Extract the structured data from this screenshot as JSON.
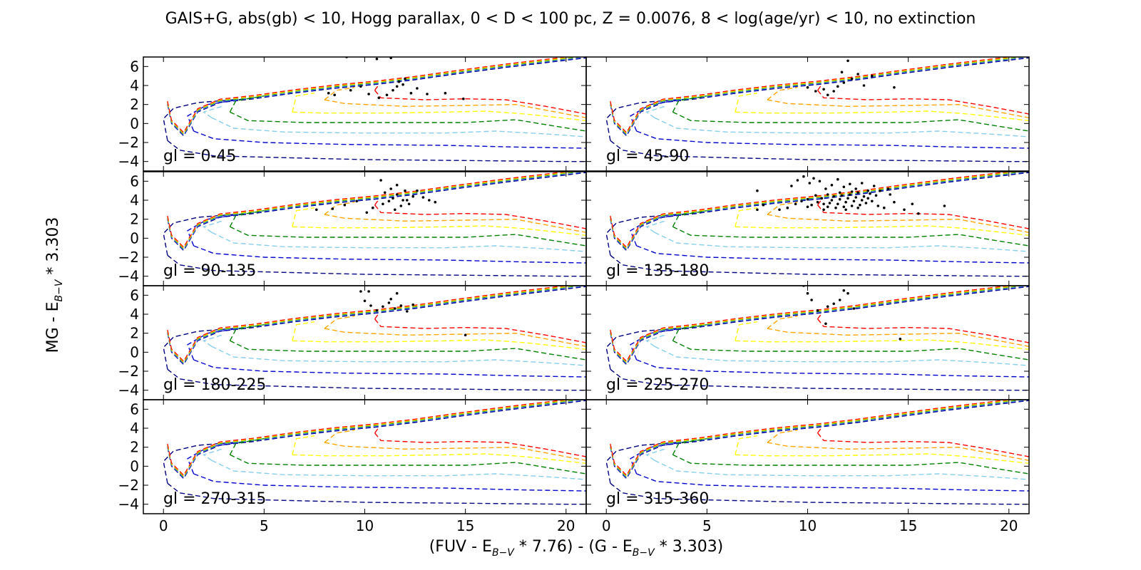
{
  "figure": {
    "title": "GAIS+G, abs(gb) < 10, Hogg parallax, 0 < D < 100 pc, Z = 0.0076, 8 < log(age/yr) < 10, no extinction",
    "xlabel_parts": [
      "(FUV - E",
      "B−V",
      " * 7.76) - (G - E",
      "B−V",
      " * 3.303)"
    ],
    "ylabel_parts": [
      "MG - E",
      "B−V",
      " * 3.303"
    ]
  },
  "chart_data": {
    "type": "scatter",
    "layout": "4x2 panel grid, shared axes",
    "xlim": [
      -1,
      21
    ],
    "ylim": [
      7,
      -5
    ],
    "x_ticks": [
      0,
      5,
      10,
      15,
      20
    ],
    "y_ticks": [
      -4,
      -2,
      0,
      2,
      4,
      6
    ],
    "x_tick_labels": [
      "0",
      "5",
      "10",
      "15",
      "20"
    ],
    "y_tick_labels": [
      "−4",
      "−2",
      "0",
      "2",
      "4",
      "6"
    ],
    "isochrone_style": "dashed",
    "isochrone_colors": [
      "#000080",
      "#0000cd",
      "#87ceeb",
      "#008000",
      "#ffff00",
      "#ffa500",
      "#ff0000"
    ],
    "point_color": "#000000",
    "panels": [
      {
        "label": "gl = 0-45",
        "points": [
          [
            8.2,
            3.2
          ],
          [
            8.5,
            3.0
          ],
          [
            9.3,
            3.5
          ],
          [
            9.8,
            3.9
          ],
          [
            10.2,
            3.1
          ],
          [
            10.7,
            2.7
          ],
          [
            11.1,
            3.0
          ],
          [
            11.4,
            3.5
          ],
          [
            11.6,
            3.9
          ],
          [
            11.9,
            4.1
          ],
          [
            12.3,
            3.2
          ],
          [
            12.6,
            3.7
          ],
          [
            13.1,
            3.1
          ],
          [
            14.0,
            3.2
          ],
          [
            14.9,
            2.6
          ],
          [
            9.1,
            7.0
          ],
          [
            10.6,
            6.8
          ],
          [
            11.3,
            6.9
          ],
          [
            11.7,
            4.4
          ],
          [
            12.0,
            4.7
          ]
        ]
      },
      {
        "label": "gl = 45-90",
        "points": [
          [
            10.0,
            3.8
          ],
          [
            10.4,
            3.4
          ],
          [
            10.8,
            3.6
          ],
          [
            11.0,
            3.0
          ],
          [
            11.3,
            3.4
          ],
          [
            11.5,
            3.9
          ],
          [
            11.8,
            4.3
          ],
          [
            12.2,
            4.7
          ],
          [
            12.5,
            5.2
          ],
          [
            12.8,
            4.0
          ],
          [
            13.2,
            5.0
          ],
          [
            11.7,
            5.4
          ],
          [
            12.0,
            6.6
          ],
          [
            14.3,
            3.8
          ]
        ]
      },
      {
        "label": "gl = 90-135",
        "points": [
          [
            7.6,
            3.0
          ],
          [
            8.4,
            3.1
          ],
          [
            9.0,
            3.5
          ],
          [
            9.6,
            3.9
          ],
          [
            10.1,
            2.7
          ],
          [
            10.4,
            3.2
          ],
          [
            10.9,
            3.6
          ],
          [
            11.2,
            3.9
          ],
          [
            11.4,
            4.2
          ],
          [
            11.6,
            4.6
          ],
          [
            11.8,
            3.4
          ],
          [
            12.1,
            4.0
          ],
          [
            12.4,
            4.4
          ],
          [
            12.6,
            5.0
          ],
          [
            12.9,
            4.3
          ],
          [
            13.2,
            4.0
          ],
          [
            13.5,
            3.8
          ],
          [
            11.0,
            4.8
          ],
          [
            11.3,
            5.2
          ],
          [
            11.6,
            5.6
          ],
          [
            10.8,
            6.1
          ],
          [
            11.5,
            3.0
          ],
          [
            11.9,
            4.0
          ],
          [
            12.2,
            3.6
          ],
          [
            12.0,
            5.0
          ]
        ]
      },
      {
        "label": "gl = 135-180",
        "points": [
          [
            7.5,
            3.0
          ],
          [
            7.8,
            3.5
          ],
          [
            8.6,
            3.0
          ],
          [
            9.0,
            3.2
          ],
          [
            9.4,
            3.6
          ],
          [
            9.7,
            3.9
          ],
          [
            10.0,
            4.1
          ],
          [
            10.2,
            3.5
          ],
          [
            10.5,
            3.8
          ],
          [
            10.7,
            4.2
          ],
          [
            10.8,
            3.0
          ],
          [
            11.0,
            3.3
          ],
          [
            11.1,
            3.7
          ],
          [
            11.2,
            4.0
          ],
          [
            11.3,
            4.4
          ],
          [
            11.4,
            3.2
          ],
          [
            11.5,
            3.6
          ],
          [
            11.6,
            4.1
          ],
          [
            11.7,
            4.5
          ],
          [
            11.8,
            3.3
          ],
          [
            11.9,
            3.8
          ],
          [
            12.0,
            4.2
          ],
          [
            12.1,
            4.6
          ],
          [
            12.2,
            3.4
          ],
          [
            12.3,
            3.9
          ],
          [
            12.4,
            4.3
          ],
          [
            12.5,
            4.8
          ],
          [
            12.6,
            3.5
          ],
          [
            12.7,
            4.0
          ],
          [
            12.8,
            4.4
          ],
          [
            12.9,
            3.7
          ],
          [
            13.0,
            4.2
          ],
          [
            13.1,
            4.7
          ],
          [
            13.2,
            3.9
          ],
          [
            13.4,
            4.5
          ],
          [
            13.6,
            5.0
          ],
          [
            13.8,
            3.2
          ],
          [
            14.1,
            4.6
          ],
          [
            14.3,
            3.8
          ],
          [
            14.8,
            3.0
          ],
          [
            15.2,
            3.6
          ],
          [
            15.5,
            2.6
          ],
          [
            16.8,
            3.4
          ],
          [
            7.5,
            5.0
          ],
          [
            9.2,
            5.5
          ],
          [
            9.5,
            6.1
          ],
          [
            9.8,
            6.5
          ],
          [
            10.1,
            5.8
          ],
          [
            10.3,
            6.3
          ],
          [
            10.6,
            6.0
          ],
          [
            10.9,
            5.2
          ],
          [
            11.2,
            5.6
          ],
          [
            11.5,
            6.2
          ],
          [
            11.8,
            5.4
          ],
          [
            12.1,
            5.7
          ],
          [
            12.4,
            5.2
          ],
          [
            12.7,
            5.8
          ],
          [
            13.0,
            5.0
          ],
          [
            13.3,
            5.5
          ],
          [
            11.0,
            4.6
          ],
          [
            10.4,
            4.5
          ],
          [
            11.6,
            4.8
          ],
          [
            12.2,
            4.9
          ],
          [
            10.0,
            3.3
          ],
          [
            10.8,
            3.6
          ],
          [
            11.9,
            3.0
          ],
          [
            12.5,
            3.2
          ],
          [
            13.5,
            3.4
          ],
          [
            14.0,
            5.2
          ]
        ]
      },
      {
        "label": "gl = 180-225",
        "points": [
          [
            10.0,
            5.4
          ],
          [
            10.3,
            4.9
          ],
          [
            10.6,
            4.4
          ],
          [
            10.9,
            4.8
          ],
          [
            11.2,
            5.2
          ],
          [
            11.5,
            4.6
          ],
          [
            11.8,
            4.9
          ],
          [
            11.3,
            5.6
          ],
          [
            11.6,
            6.2
          ],
          [
            12.1,
            4.3
          ],
          [
            12.4,
            5.0
          ],
          [
            15.0,
            1.8
          ],
          [
            9.8,
            6.4
          ],
          [
            10.2,
            6.4
          ]
        ]
      },
      {
        "label": "gl = 225-270",
        "points": [
          [
            10.2,
            5.5
          ],
          [
            10.5,
            4.4
          ],
          [
            11.0,
            4.8
          ],
          [
            11.3,
            5.1
          ],
          [
            11.6,
            5.5
          ],
          [
            12.0,
            6.2
          ],
          [
            10.9,
            3.0
          ],
          [
            9.8,
            7.0
          ],
          [
            10.0,
            6.2
          ],
          [
            11.8,
            6.5
          ],
          [
            12.3,
            4.6
          ],
          [
            14.6,
            1.4
          ]
        ]
      },
      {
        "label": "gl = 270-315",
        "points": []
      },
      {
        "label": "gl = 315-360",
        "points": []
      }
    ]
  }
}
